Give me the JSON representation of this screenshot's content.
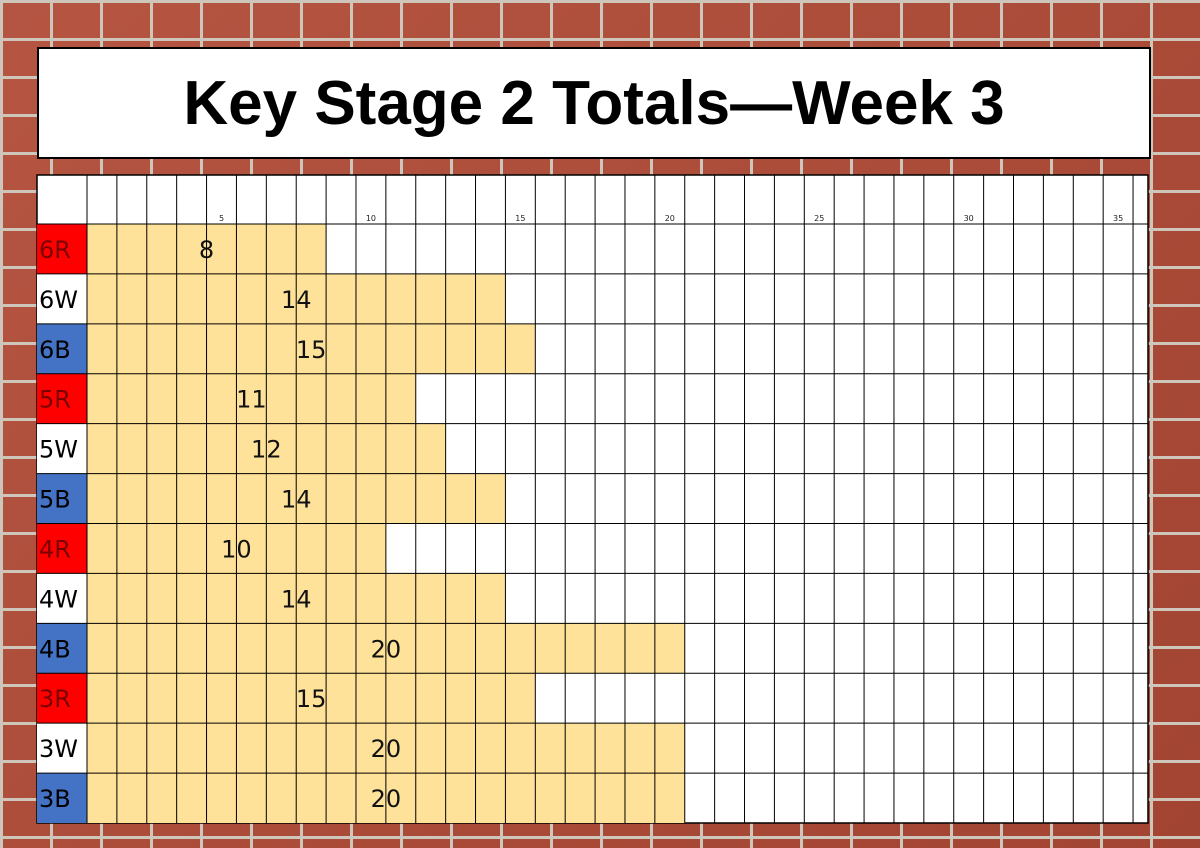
{
  "title": "Key Stage 2 Totals—Week 3",
  "chart_data": {
    "type": "bar",
    "orientation": "horizontal",
    "categories": [
      "6R",
      "6W",
      "6B",
      "5R",
      "5W",
      "5B",
      "4R",
      "4W",
      "4B",
      "3R",
      "3W",
      "3B"
    ],
    "values": [
      8,
      14,
      15,
      11,
      12,
      14,
      10,
      14,
      20,
      15,
      20,
      20
    ],
    "category_colors": [
      "#ff0000",
      "#ffffff",
      "#4472c4",
      "#ff0000",
      "#ffffff",
      "#4472c4",
      "#ff0000",
      "#ffffff",
      "#4472c4",
      "#ff0000",
      "#ffffff",
      "#4472c4"
    ],
    "bar_color": "#ffe29a",
    "xlim": [
      0,
      35.5
    ],
    "xticks": [
      "5",
      "10",
      "15",
      "20",
      "25",
      "30",
      "35"
    ],
    "grid": true
  }
}
